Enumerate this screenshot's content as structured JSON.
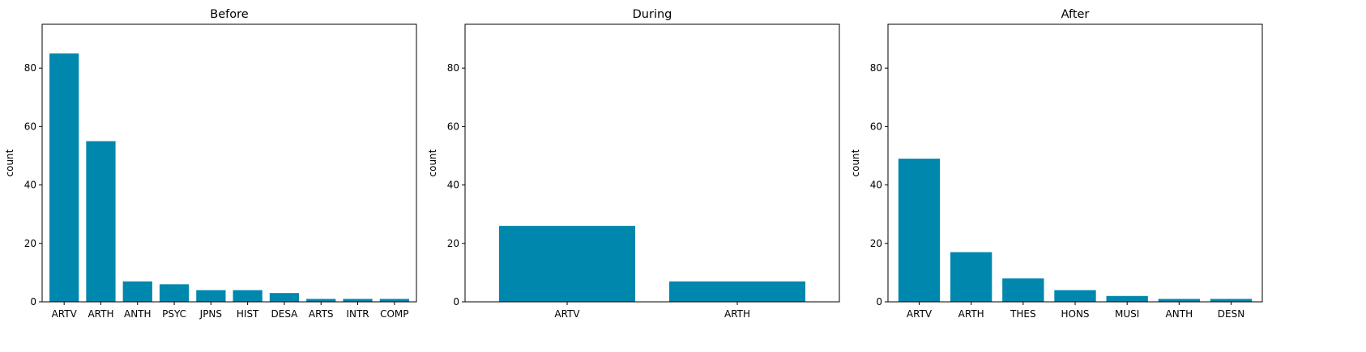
{
  "chart_data": [
    {
      "type": "bar",
      "title": "Before",
      "xlabel": "",
      "ylabel": "count",
      "ylim": [
        0,
        95
      ],
      "yticks": [
        0,
        20,
        40,
        60,
        80
      ],
      "grid": false,
      "bar_color": "#0087ad",
      "categories": [
        "ARTV",
        "ARTH",
        "ANTH",
        "PSYC",
        "JPNS",
        "HIST",
        "DESA",
        "ARTS",
        "INTR",
        "COMP"
      ],
      "values": [
        85,
        55,
        7,
        6,
        4,
        4,
        3,
        1,
        1,
        1
      ]
    },
    {
      "type": "bar",
      "title": "During",
      "xlabel": "",
      "ylabel": "count",
      "ylim": [
        0,
        95
      ],
      "yticks": [
        0,
        20,
        40,
        60,
        80
      ],
      "grid": false,
      "bar_color": "#0087ad",
      "categories": [
        "ARTV",
        "ARTH"
      ],
      "values": [
        26,
        7
      ]
    },
    {
      "type": "bar",
      "title": "After",
      "xlabel": "",
      "ylabel": "count",
      "ylim": [
        0,
        95
      ],
      "yticks": [
        0,
        20,
        40,
        60,
        80
      ],
      "grid": false,
      "bar_color": "#0087ad",
      "categories": [
        "ARTV",
        "ARTH",
        "THES",
        "HONS",
        "MUSI",
        "ANTH",
        "DESN"
      ],
      "values": [
        49,
        17,
        8,
        4,
        2,
        1,
        1
      ]
    }
  ]
}
